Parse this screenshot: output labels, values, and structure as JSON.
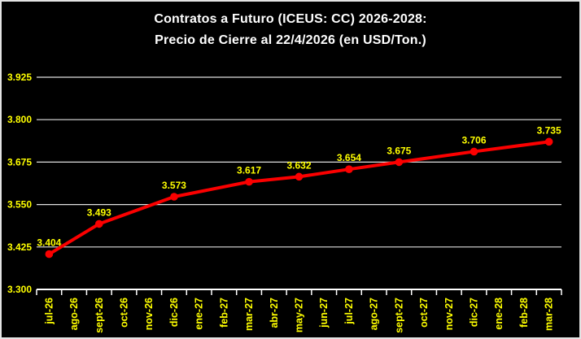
{
  "window": {
    "background": "#000000",
    "border_color": "#e3e3e3"
  },
  "title": {
    "line1": "Contratos a Futuro (ICEUS: CC) 2026-2028:",
    "line2": "Precio de Cierre al 22/4/2026 (en USD/Ton.)"
  },
  "chart_data": {
    "type": "line",
    "title": "Contratos a Futuro (ICEUS: CC) 2026-2028: Precio de Cierre al 22/4/2026 (en USD/Ton.)",
    "categories": [
      "jul-26",
      "ago-26",
      "sept-26",
      "oct-26",
      "nov-26",
      "dic-26",
      "ene-27",
      "feb-27",
      "mar-27",
      "abr-27",
      "may-27",
      "jun-27",
      "jul-27",
      "ago-27",
      "sept-27",
      "oct-27",
      "nov-27",
      "dic-27",
      "ene-28",
      "feb-28",
      "mar-28"
    ],
    "series": [
      {
        "name": "Precio de Cierre",
        "color": "#fb0000",
        "points": [
          {
            "category": "jul-26",
            "index": 0,
            "value": 3.404,
            "label": "3.404"
          },
          {
            "category": "sept-26",
            "index": 2,
            "value": 3.493,
            "label": "3.493"
          },
          {
            "category": "dic-26",
            "index": 5,
            "value": 3.573,
            "label": "3.573"
          },
          {
            "category": "mar-27",
            "index": 8,
            "value": 3.617,
            "label": "3.617"
          },
          {
            "category": "may-27",
            "index": 10,
            "value": 3.632,
            "label": "3.632"
          },
          {
            "category": "jul-27",
            "index": 12,
            "value": 3.654,
            "label": "3.654"
          },
          {
            "category": "sept-27",
            "index": 14,
            "value": 3.675,
            "label": "3.675"
          },
          {
            "category": "dic-27",
            "index": 17,
            "value": 3.706,
            "label": "3.706"
          },
          {
            "category": "mar-28",
            "index": 20,
            "value": 3.735,
            "label": "3.735"
          }
        ]
      }
    ],
    "y_axis": {
      "min": 3.3,
      "max": 3.925,
      "step": 0.125,
      "tick_labels": [
        "3.300",
        "3.425",
        "3.550",
        "3.675",
        "3.800",
        "3.925"
      ]
    },
    "x_axis": {
      "label_rotation": -90
    },
    "grid": true,
    "legend": "none",
    "colors": {
      "background": "#000000",
      "title": "#ffffff",
      "axis_labels": "#ffff00",
      "data_labels": "#ffff00",
      "gridline": "#e0e0e0",
      "axis_line": "#ffffff",
      "series_line": "#fb0000"
    }
  }
}
